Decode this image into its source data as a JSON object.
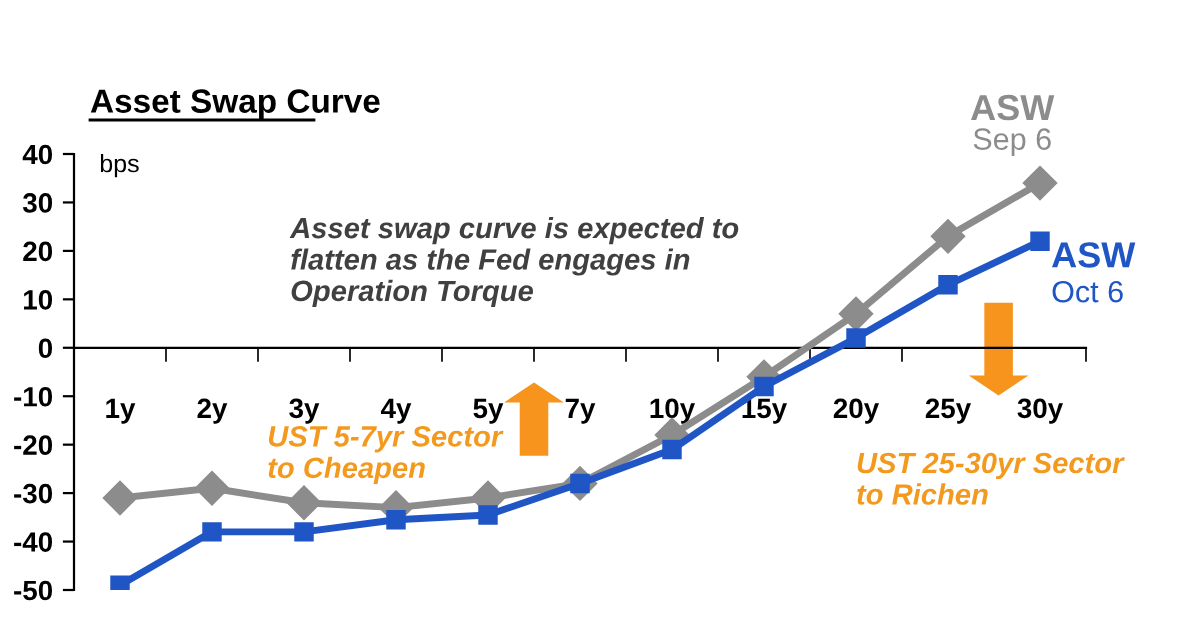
{
  "chart_data": {
    "type": "line",
    "title": "Asset Swap Curve",
    "ylabel": "bps",
    "categories": [
      "1y",
      "2y",
      "3y",
      "4y",
      "5y",
      "7y",
      "10y",
      "15y",
      "20y",
      "25y",
      "30y"
    ],
    "series": [
      {
        "name": "ASW\nSep 6",
        "color": "#8c8c8c",
        "marker": "diamond",
        "values": [
          -31,
          -29,
          -32,
          -33,
          -31,
          -28,
          -18,
          -6,
          7,
          23,
          34
        ]
      },
      {
        "name": "ASW\nOct 6",
        "color": "#1f55c4",
        "marker": "square",
        "values": [
          -49,
          -38,
          -38,
          -35.5,
          -34.5,
          -28,
          -21,
          -8,
          2,
          13,
          22
        ]
      }
    ],
    "ylim": [
      -50,
      40
    ],
    "yticks": [
      -50,
      -40,
      -30,
      -20,
      -10,
      0,
      10,
      20,
      30,
      40
    ],
    "grid": false,
    "legend": false,
    "line_style": "solid",
    "annotations": [
      "Asset swap curve is expected to\nflatten as the Fed engages in\nOperation Torque",
      "UST 5-7yr Sector\nto Cheapen",
      "UST 25-30yr Sector\nto Richen"
    ]
  }
}
